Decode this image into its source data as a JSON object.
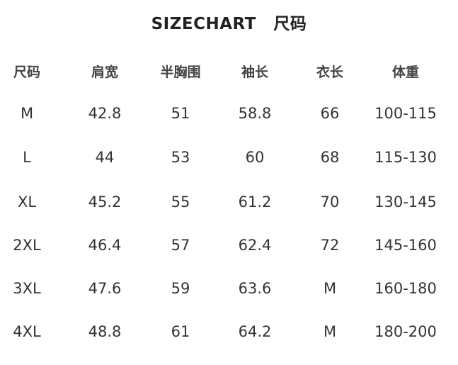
{
  "title": {
    "en": "SIZECHART",
    "zh": "尺码"
  },
  "table": {
    "headers": [
      "尺码",
      "肩宽",
      "半胸围",
      "袖长",
      "衣长",
      "体重"
    ],
    "rows": [
      [
        "M",
        "42.8",
        "51",
        "58.8",
        "66",
        "100-115"
      ],
      [
        "L",
        "44",
        "53",
        "60",
        "68",
        "115-130"
      ],
      [
        "XL",
        "45.2",
        "55",
        "61.2",
        "70",
        "130-145"
      ],
      [
        "2XL",
        "46.4",
        "57",
        "62.4",
        "72",
        "145-160"
      ],
      [
        "3XL",
        "47.6",
        "59",
        "63.6",
        "M",
        "160-180"
      ],
      [
        "4XL",
        "48.8",
        "61",
        "64.2",
        "M",
        "180-200"
      ]
    ]
  }
}
